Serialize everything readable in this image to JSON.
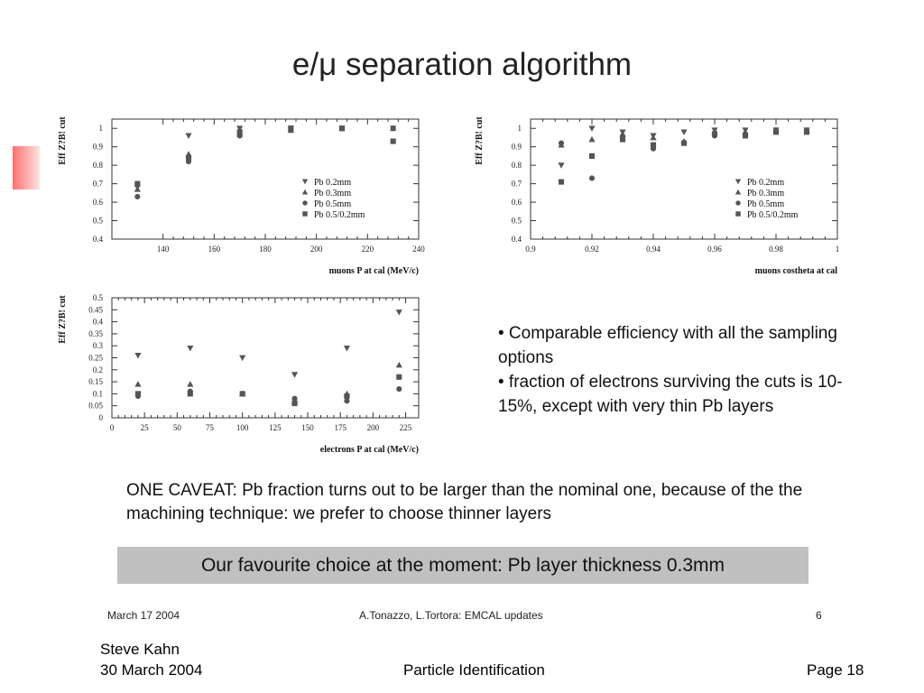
{
  "title": "e/μ separation algorithm",
  "colors": {
    "banner_bg": "#c0c0c0",
    "deco_accent": "#ff6f6f",
    "marker": "#555555"
  },
  "markers": [
    "down-triangle",
    "up-triangle",
    "circle",
    "square"
  ],
  "chart_data": [
    {
      "type": "scatter",
      "ylabel": "Eff Z?B! cut",
      "xlabel": "muons P at cal (MeV/c)",
      "xlim": [
        120,
        240
      ],
      "ylim": [
        0.4,
        1.05
      ],
      "xticks": [
        140,
        160,
        180,
        200,
        220,
        240
      ],
      "yticks": [
        0.4,
        0.5,
        0.6,
        0.7,
        0.8,
        0.9,
        1
      ],
      "legend_position": "bottom-right",
      "series": [
        {
          "name": "Pb 0.2mm",
          "x": [
            130,
            150,
            170,
            190,
            210,
            230
          ],
          "y": [
            0.68,
            0.96,
            1.0,
            1.0,
            1.0,
            1.0
          ]
        },
        {
          "name": "Pb 0.3mm",
          "x": [
            130,
            150,
            170,
            190,
            210,
            230
          ],
          "y": [
            0.67,
            0.86,
            0.97,
            0.99,
            1.0,
            1.0
          ]
        },
        {
          "name": "Pb 0.5mm",
          "x": [
            130,
            150,
            170,
            190,
            210,
            230
          ],
          "y": [
            0.63,
            0.82,
            0.96,
            0.99,
            1.0,
            1.0
          ]
        },
        {
          "name": "Pb 0.5/0.2mm",
          "x": [
            130,
            150,
            170,
            190,
            210,
            230
          ],
          "y": [
            0.7,
            0.84,
            0.98,
            1.0,
            1.0,
            0.93
          ]
        }
      ]
    },
    {
      "type": "scatter",
      "ylabel": "Eff Z?B! cut",
      "xlabel": "muons costheta at cal",
      "xlim": [
        0.9,
        1.0
      ],
      "ylim": [
        0.4,
        1.05
      ],
      "xticks": [
        0.9,
        0.92,
        0.94,
        0.96,
        0.98,
        1
      ],
      "yticks": [
        0.4,
        0.5,
        0.6,
        0.7,
        0.8,
        0.9,
        1
      ],
      "legend_position": "bottom-right",
      "series": [
        {
          "name": "Pb 0.2mm",
          "x": [
            0.91,
            0.92,
            0.93,
            0.94,
            0.95,
            0.96,
            0.97,
            0.98,
            0.99
          ],
          "y": [
            0.8,
            1.0,
            0.98,
            0.96,
            0.98,
            0.99,
            0.99,
            0.99,
            0.99
          ]
        },
        {
          "name": "Pb 0.3mm",
          "x": [
            0.91,
            0.92,
            0.93,
            0.94,
            0.95,
            0.96,
            0.97,
            0.98,
            0.99
          ],
          "y": [
            0.91,
            0.94,
            0.97,
            0.95,
            0.93,
            0.98,
            0.98,
            0.99,
            0.99
          ]
        },
        {
          "name": "Pb 0.5mm",
          "x": [
            0.91,
            0.92,
            0.93,
            0.94,
            0.95,
            0.96,
            0.97,
            0.98,
            0.99
          ],
          "y": [
            0.92,
            0.73,
            0.95,
            0.89,
            0.92,
            0.96,
            0.97,
            0.98,
            0.98
          ]
        },
        {
          "name": "Pb 0.5/0.2mm",
          "x": [
            0.91,
            0.92,
            0.93,
            0.94,
            0.95,
            0.96,
            0.97,
            0.98,
            0.99
          ],
          "y": [
            0.71,
            0.85,
            0.94,
            0.91,
            0.92,
            0.97,
            0.96,
            0.98,
            0.98
          ]
        }
      ]
    },
    {
      "type": "scatter",
      "ylabel": "Eff Z?B! cut",
      "xlabel": "electrons P at cal (MeV/c)",
      "xlim": [
        0,
        235
      ],
      "ylim": [
        0,
        0.5
      ],
      "xticks": [
        0,
        25,
        50,
        75,
        100,
        125,
        150,
        175,
        200,
        225
      ],
      "yticks": [
        0,
        0.05,
        0.1,
        0.15,
        0.2,
        0.25,
        0.3,
        0.35,
        0.4,
        0.45,
        0.5
      ],
      "legend_position": "none",
      "series": [
        {
          "name": "Pb 0.2mm",
          "x": [
            20,
            60,
            100,
            140,
            180,
            220
          ],
          "y": [
            0.26,
            0.29,
            0.25,
            0.18,
            0.29,
            0.44
          ]
        },
        {
          "name": "Pb 0.3mm",
          "x": [
            20,
            60,
            100,
            140,
            180,
            220
          ],
          "y": [
            0.14,
            0.14,
            0.1,
            0.07,
            0.1,
            0.22
          ]
        },
        {
          "name": "Pb 0.5mm",
          "x": [
            20,
            60,
            100,
            140,
            180,
            220
          ],
          "y": [
            0.09,
            0.11,
            0.1,
            0.08,
            0.07,
            0.12
          ]
        },
        {
          "name": "Pb 0.5/0.2mm",
          "x": [
            20,
            60,
            100,
            140,
            180,
            220
          ],
          "y": [
            0.1,
            0.1,
            0.1,
            0.06,
            0.09,
            0.17
          ]
        }
      ]
    }
  ],
  "bullets": [
    "• Comparable efficiency with all the sampling options",
    "• fraction of electrons surviving the cuts is 10-15%, except with very thin Pb layers"
  ],
  "caveat": "ONE CAVEAT: Pb fraction turns out to be larger than the nominal one, because of the the machining technique: we prefer to choose thinner layers",
  "banner": "Our favourite choice at the moment: Pb layer thickness 0.3mm",
  "slide_footer": {
    "date": "March 17 2004",
    "authors": "A.Tonazzo, L.Tortora: EMCAL updates",
    "page": "6"
  },
  "footer": {
    "author": "Steve Kahn",
    "date": "30 March 2004",
    "topic": "Particle Identification",
    "page": "Page 18"
  }
}
